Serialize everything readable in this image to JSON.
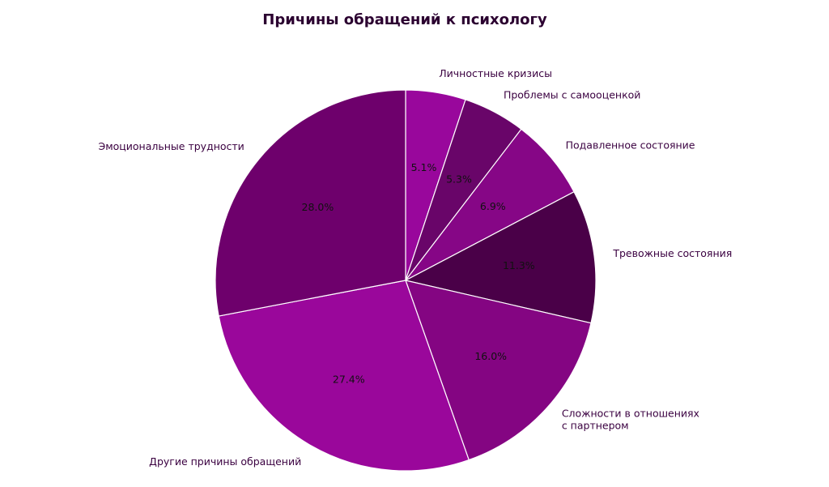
{
  "chart_data": {
    "type": "pie",
    "title": "Причины обращений к психологу",
    "categories": [
      "Личностные кризисы",
      "Проблемы с самооценкой",
      "Подавленное состояние",
      "Тревожные состояния",
      "Сложности в отношениях с партнером",
      "Другие причины обращений",
      "Эмоциональные трудности"
    ],
    "label_lines": [
      [
        "Личностные кризисы"
      ],
      [
        "Проблемы с самооценкой"
      ],
      [
        "Подавленное состояние"
      ],
      [
        "Тревожные состояния"
      ],
      [
        "Сложности в отношениях",
        "с партнером"
      ],
      [
        "Другие причины обращений"
      ],
      [
        "Эмоциональные трудности"
      ]
    ],
    "values": [
      5.1,
      5.3,
      6.9,
      11.3,
      16.0,
      27.4,
      28.0
    ],
    "value_labels": [
      "5.1%",
      "5.3%",
      "6.9%",
      "11.3%",
      "16.0%",
      "27.4%",
      "28.0%"
    ],
    "colors": [
      "#99079c",
      "#690569",
      "#860686",
      "#4a0048",
      "#840582",
      "#9a079b",
      "#6e006c"
    ],
    "start_angle_deg": 90,
    "direction": "clockwise",
    "text_color": "#3a0040",
    "pct_text_color": "#111111",
    "edge_color": "#ffffff",
    "legend": "none"
  }
}
